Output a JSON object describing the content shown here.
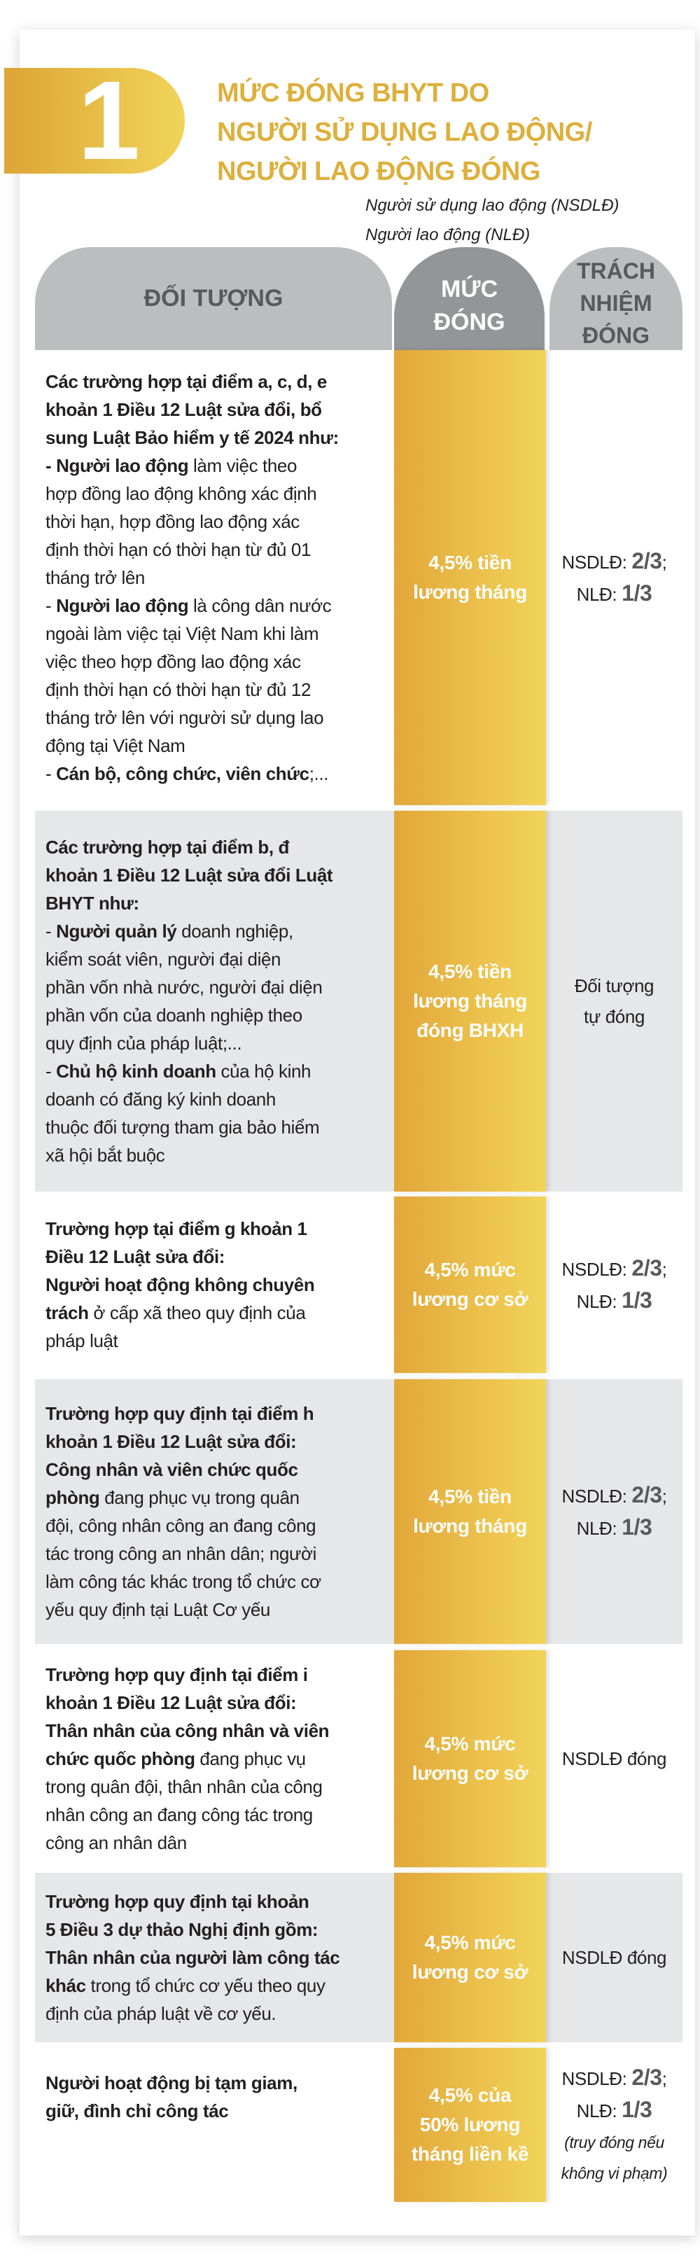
{
  "badge": {
    "number": "1"
  },
  "title": {
    "lines": [
      "MỨC ĐÓNG BHYT DO",
      "NGƯỜI SỬ DỤNG LAO ĐỘNG/",
      "NGƯỜI LAO ĐỘNG ĐÓNG"
    ]
  },
  "legend": [
    "Người sử dụng lao động (NSDLĐ)",
    "Người lao động (NLĐ)"
  ],
  "header": {
    "subject": "ĐỐI TƯỢNG",
    "rate": "MỨC\nĐÓNG",
    "responsibility": "TRÁCH\nNHIỆM\nĐÓNG"
  },
  "colors": {
    "gold": "#E2A73A",
    "gold_light": "#F2D45A",
    "header_gray": "#BCBDBF",
    "header_dark": "#939598",
    "row_gray": "#E6E7E8"
  },
  "rows": [
    {
      "subject": [
        {
          "t": "Các trường hợp tại điểm a, c, d, e\nkhoản 1 Điều 12 Luật sửa đổi, bổ\nsung Luật Bảo hiểm y tế 2024 như:\n- ",
          "b": true
        },
        {
          "t": "Người lao động",
          "b": true
        },
        {
          "t": " làm việc theo\nhợp đồng lao động không xác định\nthời hạn, hợp đồng lao động xác\nđịnh thời hạn có thời hạn từ đủ 01\ntháng trở lên\n- ",
          "b": false
        },
        {
          "t": "Người lao động",
          "b": true
        },
        {
          "t": " là công dân nước\nngoài làm việc tại Việt Nam khi làm\nviệc theo hợp đồng lao động xác\nđịnh thời hạn có thời hạn từ đủ 12\ntháng trở lên với người sử dụng lao\nđộng tại Việt Nam\n- ",
          "b": false
        },
        {
          "t": "Cán bộ, công chức, viên chức",
          "b": true
        },
        {
          "t": ";...",
          "b": false
        }
      ],
      "rate": "4,5% tiền\nlương tháng",
      "resp": [
        {
          "t": "NSDLĐ: ",
          "b": false
        },
        {
          "t": "2/3",
          "b": true
        },
        {
          "t": ";\nNLĐ: ",
          "b": false
        },
        {
          "t": "1/3",
          "b": true
        }
      ]
    },
    {
      "subject": [
        {
          "t": "Các trường hợp tại điểm b, đ\nkhoản 1 Điều 12 Luật sửa đổi Luật\nBHYT như:",
          "b": true
        },
        {
          "t": "\n- ",
          "b": false
        },
        {
          "t": "Người quản lý",
          "b": true
        },
        {
          "t": " doanh nghiệp,\nkiểm soát viên, người đại diện\nphần vốn nhà nước, người đại diện\nphần vốn của doanh nghiệp theo\nquy định của pháp luật;...\n- ",
          "b": false
        },
        {
          "t": "Chủ hộ kinh doanh",
          "b": true
        },
        {
          "t": " của hộ kinh\ndoanh có đăng ký kinh doanh\nthuộc đối tượng tham gia bảo hiểm\nxã hội bắt buộc",
          "b": false
        }
      ],
      "rate": "4,5% tiền\nlương tháng\nđóng BHXH",
      "resp": [
        {
          "t": "Đối tượng\ntự đóng",
          "b": false
        }
      ]
    },
    {
      "subject": [
        {
          "t": "Trường hợp tại điểm g khoản 1\nĐiều 12 Luật sửa đổi:\nNgười hoạt động không chuyên\ntrách",
          "b": true
        },
        {
          "t": " ở cấp xã theo quy định của\npháp luật",
          "b": false
        }
      ],
      "rate": "4,5% mức\nlương cơ sở",
      "resp": [
        {
          "t": "NSDLĐ: ",
          "b": false
        },
        {
          "t": "2/3",
          "b": true
        },
        {
          "t": ";\nNLĐ: ",
          "b": false
        },
        {
          "t": "1/3",
          "b": true
        }
      ]
    },
    {
      "subject": [
        {
          "t": "Trường hợp quy định tại điểm h\nkhoản 1 Điều 12 Luật sửa đổi:\nCông nhân và viên chức quốc\nphòng",
          "b": true
        },
        {
          "t": " đang phục vụ trong quân\nđội, công nhân công an đang công\ntác trong công an nhân dân; người\nlàm công tác khác trong tổ chức cơ\nyếu quy định tại Luật Cơ yếu",
          "b": false
        }
      ],
      "rate": "4,5% tiền\nlương tháng",
      "resp": [
        {
          "t": "NSDLĐ: ",
          "b": false
        },
        {
          "t": "2/3",
          "b": true
        },
        {
          "t": ";\nNLĐ: ",
          "b": false
        },
        {
          "t": "1/3",
          "b": true
        }
      ]
    },
    {
      "subject": [
        {
          "t": "Trường hợp quy định tại điểm i\nkhoản 1 Điều 12 Luật sửa đổi:\nThân nhân của công nhân và viên\nchức quốc phòng",
          "b": true
        },
        {
          "t": " đang phục vụ\ntrong quân đội, thân nhân của công\nnhân công an đang công tác trong\ncông an nhân dân",
          "b": false
        }
      ],
      "rate": "4,5% mức\nlương cơ sở",
      "resp": [
        {
          "t": "NSDLĐ đóng",
          "b": false
        }
      ]
    },
    {
      "subject": [
        {
          "t": "Trường hợp quy định tại khoản\n5 Điều 3 dự thảo Nghị định gồm:\nThân nhân của người làm công tác\nkhác",
          "b": true
        },
        {
          "t": " trong tổ chức cơ yếu theo quy\nđịnh của pháp luật về cơ yếu.",
          "b": false
        }
      ],
      "rate": "4,5% mức\nlương cơ sở",
      "resp": [
        {
          "t": "NSDLĐ đóng",
          "b": false
        }
      ]
    },
    {
      "subject": [
        {
          "t": "Người hoạt động bị tạm giam,\ngiữ, đình chỉ công tác",
          "b": true
        }
      ],
      "rate": "4,5% của\n50% lương\ntháng liền kề",
      "resp": [
        {
          "t": "NSDLĐ: ",
          "b": false
        },
        {
          "t": "2/3",
          "b": true
        },
        {
          "t": ";\nNLĐ: ",
          "b": false
        },
        {
          "t": "1/3",
          "b": true
        },
        {
          "t": "\n(truy đóng nếu\nkhông vi phạm)",
          "i": true
        }
      ]
    }
  ]
}
